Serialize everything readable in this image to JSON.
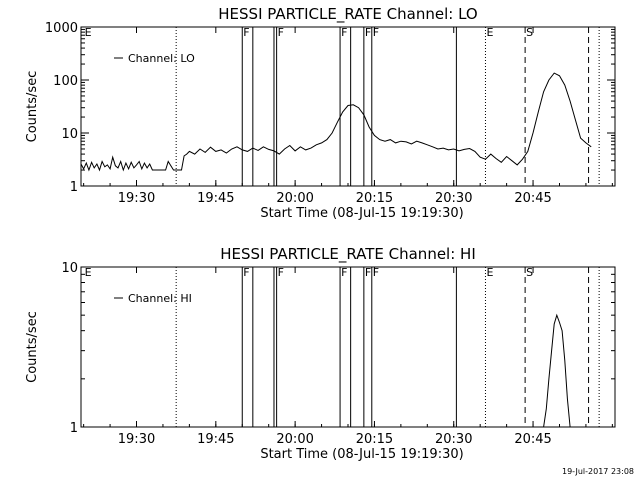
{
  "chart_data": [
    {
      "type": "line",
      "title": "HESSI PARTICLE_RATE Channel: LO",
      "xlabel": "Start Time (08-Jul-15 19:19:30)",
      "ylabel": "Counts/sec",
      "y_scale": "log",
      "xlim": [
        "19:19:30",
        "21:00:30"
      ],
      "ylim": [
        1,
        1000
      ],
      "xticks": [
        "19:30",
        "19:45",
        "20:00",
        "20:15",
        "20:30",
        "20:45"
      ],
      "yticks": [
        "1",
        "10",
        "100",
        "1000"
      ],
      "legend": {
        "label": "Channel: LO",
        "position": "top-left"
      },
      "series": [
        {
          "name": "Channel: LO",
          "x": [
            "19:19:30",
            "19:20:00",
            "19:20:30",
            "19:21:00",
            "19:21:30",
            "19:22:00",
            "19:22:30",
            "19:23:00",
            "19:23:30",
            "19:24:00",
            "19:24:30",
            "19:25:00",
            "19:25:30",
            "19:26:00",
            "19:26:30",
            "19:27:00",
            "19:27:30",
            "19:28:00",
            "19:28:30",
            "19:29:00",
            "19:29:30",
            "19:30:00",
            "19:30:30",
            "19:31:00",
            "19:31:30",
            "19:32:00",
            "19:32:30",
            "19:33:00",
            "19:33:30",
            "19:34:00",
            "19:34:30",
            "19:35:00",
            "19:35:30",
            "19:36:00",
            "19:37:00",
            "19:38:00",
            "19:38:30",
            "19:39:00",
            "19:39:30",
            "19:40:00",
            "19:41:00",
            "19:42:00",
            "19:43:00",
            "19:44:00",
            "19:45:00",
            "19:46:00",
            "19:47:00",
            "19:48:00",
            "19:49:00",
            "19:50:00",
            "19:51:00",
            "19:52:00",
            "19:53:00",
            "19:54:00",
            "19:55:00",
            "19:56:00",
            "19:57:00",
            "19:58:00",
            "19:59:00",
            "20:00:00",
            "20:01:00",
            "20:02:00",
            "20:03:00",
            "20:04:00",
            "20:05:00",
            "20:06:00",
            "20:07:00",
            "20:08:00",
            "20:09:00",
            "20:10:00",
            "20:11:00",
            "20:12:00",
            "20:13:00",
            "20:14:00",
            "20:15:00",
            "20:16:00",
            "20:17:00",
            "20:18:00",
            "20:19:00",
            "20:20:00",
            "20:21:00",
            "20:22:00",
            "20:23:00",
            "20:24:00",
            "20:25:00",
            "20:26:00",
            "20:27:00",
            "20:28:00",
            "20:29:00",
            "20:30:00",
            "20:31:00",
            "20:32:00",
            "20:33:00",
            "20:34:00",
            "20:35:00",
            "20:36:00",
            "20:37:00",
            "20:38:00",
            "20:39:00",
            "20:40:00",
            "20:41:00",
            "20:42:00",
            "20:43:00",
            "20:44:00",
            "20:45:00",
            "20:46:00",
            "20:47:00",
            "20:48:00",
            "20:49:00",
            "20:50:00",
            "20:51:00",
            "20:52:00",
            "20:53:00",
            "20:54:00",
            "20:55:00",
            "20:56:00"
          ],
          "values": [
            2.6,
            2.1,
            2.7,
            2.0,
            2.8,
            2.2,
            2.6,
            2.0,
            2.9,
            2.3,
            2.5,
            2.1,
            3.5,
            2.4,
            2.2,
            2.9,
            2.0,
            2.7,
            2.1,
            2.8,
            2.2,
            2.5,
            2.9,
            2.1,
            2.7,
            2.2,
            2.6,
            2.0,
            2.0,
            2.0,
            2.0,
            2.0,
            2.0,
            2.9,
            2.0,
            2.0,
            2.0,
            3.7,
            4.0,
            4.5,
            4.0,
            5.0,
            4.3,
            5.4,
            4.5,
            4.8,
            4.2,
            5.0,
            5.5,
            4.8,
            4.5,
            5.2,
            4.7,
            5.5,
            4.9,
            4.6,
            4.0,
            5.0,
            5.8,
            4.6,
            5.5,
            4.8,
            5.2,
            6.0,
            6.5,
            7.5,
            10,
            16,
            25,
            33,
            34,
            30,
            22,
            13,
            9,
            7.5,
            7,
            7.5,
            6.5,
            7,
            6.8,
            6.2,
            7,
            6.5,
            6,
            5.5,
            5,
            5.2,
            4.8,
            5,
            4.6,
            4.9,
            5.1,
            4.5,
            3.5,
            3.2,
            4.0,
            3.3,
            2.8,
            3.6,
            3.0,
            2.5,
            3.2,
            4.5,
            10,
            25,
            60,
            100,
            135,
            120,
            80,
            40,
            18,
            8,
            6.5,
            5.5
          ]
        }
      ],
      "annotations": [
        "E",
        "F",
        "F",
        "F",
        "F",
        "F",
        "E",
        "S"
      ]
    },
    {
      "type": "line",
      "title": "HESSI PARTICLE_RATE Channel: HI",
      "xlabel": "Start Time (08-Jul-15 19:19:30)",
      "ylabel": "Counts/sec",
      "y_scale": "log",
      "xlim": [
        "19:19:30",
        "21:00:30"
      ],
      "ylim": [
        1,
        10
      ],
      "xticks": [
        "19:30",
        "19:45",
        "20:00",
        "20:15",
        "20:30",
        "20:45"
      ],
      "yticks": [
        "1",
        "10"
      ],
      "legend": {
        "label": "Channel: HI",
        "position": "top-left"
      },
      "series": [
        {
          "name": "Channel: HI",
          "x": [
            "20:47:00",
            "20:47:30",
            "20:48:00",
            "20:48:30",
            "20:49:00",
            "20:49:30",
            "20:50:00",
            "20:50:30",
            "20:51:00",
            "20:51:30",
            "20:52:00"
          ],
          "values": [
            1.0,
            1.3,
            2.0,
            3.0,
            4.4,
            5.0,
            4.5,
            4.0,
            2.6,
            1.5,
            1.0
          ]
        }
      ],
      "annotations": [
        "E",
        "F",
        "F",
        "F",
        "F",
        "F",
        "E",
        "S"
      ]
    }
  ],
  "event_lines": [
    {
      "time": "19:37:30",
      "style": "dotted"
    },
    {
      "time": "19:50:00",
      "style": "solid"
    },
    {
      "time": "19:52:00",
      "style": "solid"
    },
    {
      "time": "19:56:00",
      "style": "solid"
    },
    {
      "time": "19:56:30",
      "style": "solid"
    },
    {
      "time": "20:08:30",
      "style": "solid"
    },
    {
      "time": "20:10:30",
      "style": "solid"
    },
    {
      "time": "20:13:00",
      "style": "solid"
    },
    {
      "time": "20:14:30",
      "style": "solid"
    },
    {
      "time": "20:30:30",
      "style": "solid"
    },
    {
      "time": "20:36:00",
      "style": "dotted"
    },
    {
      "time": "20:43:30",
      "style": "dashed"
    },
    {
      "time": "20:55:30",
      "style": "dashed"
    },
    {
      "time": "20:57:30",
      "style": "dotted"
    }
  ],
  "flags": [
    {
      "time": "19:20:00",
      "label": "E"
    },
    {
      "time": "19:50:00",
      "label": "F"
    },
    {
      "time": "19:56:30",
      "label": "F"
    },
    {
      "time": "20:08:30",
      "label": "F"
    },
    {
      "time": "20:13:00",
      "label": "F"
    },
    {
      "time": "20:14:30",
      "label": "F"
    },
    {
      "time": "20:36:00",
      "label": "E"
    },
    {
      "time": "20:43:30",
      "label": "S"
    }
  ],
  "timestamp": "19-Jul-2017 23:08"
}
